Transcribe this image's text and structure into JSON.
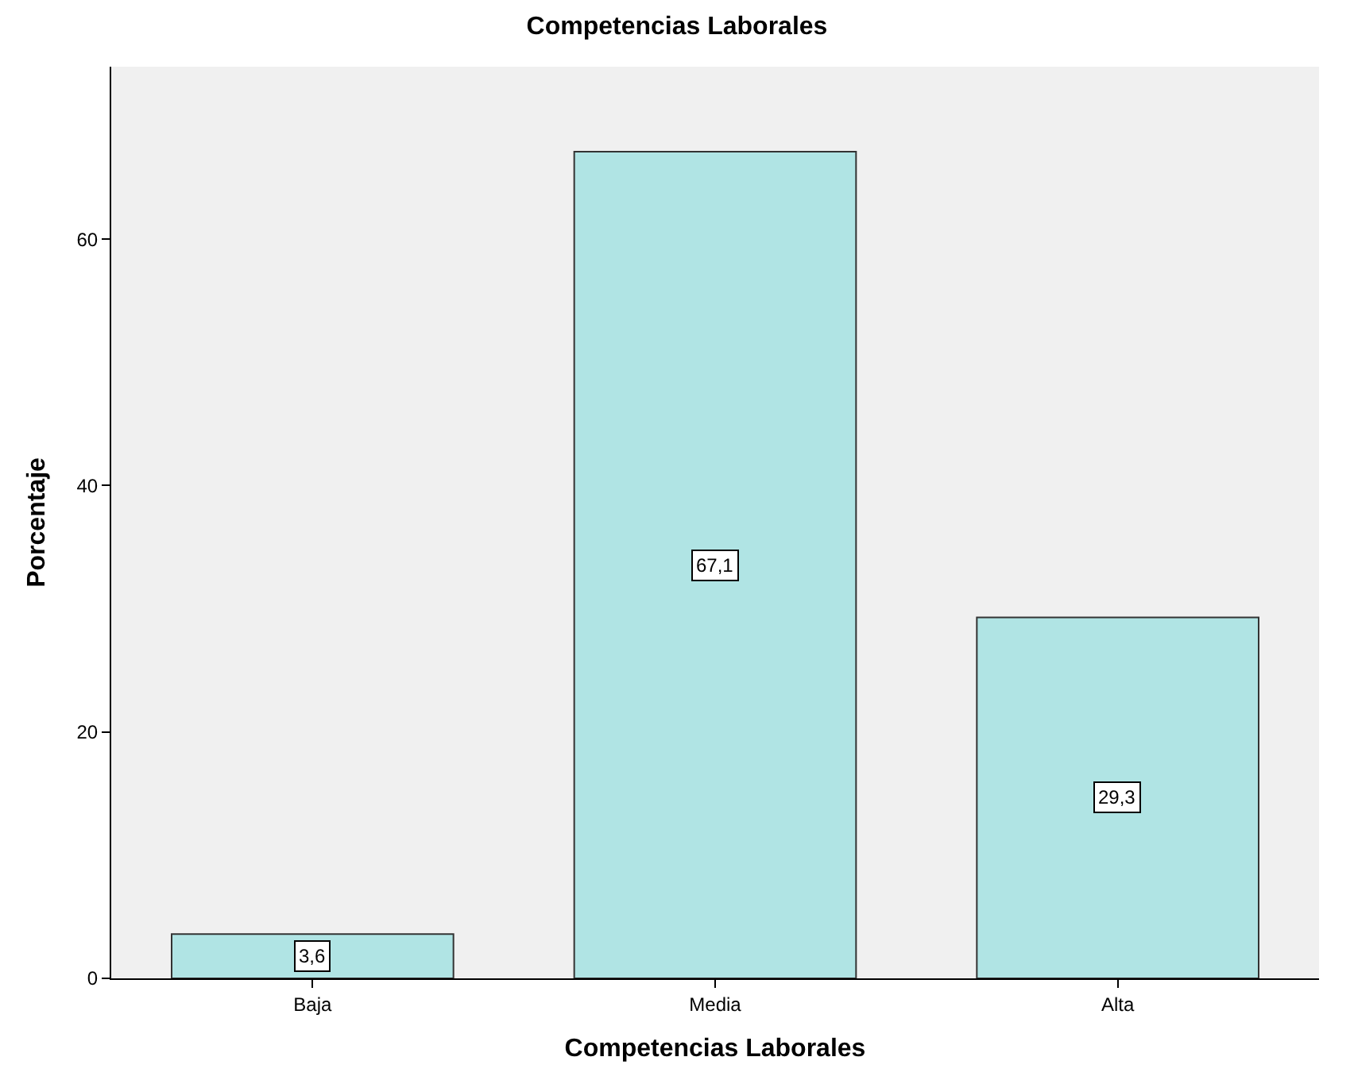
{
  "chart_data": {
    "type": "bar",
    "title": "Competencias Laborales",
    "xlabel": "Competencias Laborales",
    "ylabel": "Porcentaje",
    "categories": [
      "Baja",
      "Media",
      "Alta"
    ],
    "values": [
      3.6,
      67.1,
      29.3
    ],
    "value_labels": [
      "3,6",
      "67,1",
      "29,3"
    ],
    "color": "#b0e4e4",
    "ylim": [
      0,
      74
    ],
    "yticks": [
      0,
      20,
      40,
      60
    ],
    "grid": false,
    "legend": false
  }
}
